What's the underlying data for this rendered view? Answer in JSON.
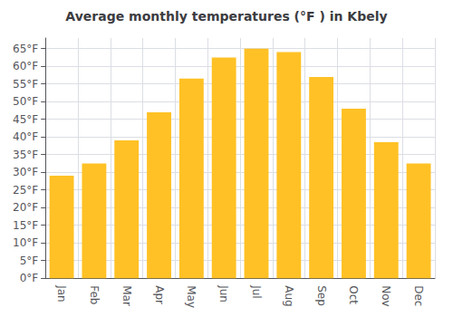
{
  "chart_data": {
    "type": "bar",
    "title": "Average monthly temperatures (°F ) in Kbely",
    "categories": [
      "Jan",
      "Feb",
      "Mar",
      "Apr",
      "May",
      "Jun",
      "Jul",
      "Aug",
      "Sep",
      "Oct",
      "Nov",
      "Dec"
    ],
    "values": [
      29,
      32.5,
      39,
      47,
      56.5,
      62.5,
      65,
      64,
      57,
      48,
      38.5,
      32.5
    ],
    "color": "#FFC125",
    "ylim": [
      0,
      68
    ],
    "yticks": [
      {
        "value": 0,
        "label": "0°F"
      },
      {
        "value": 5,
        "label": "5°F"
      },
      {
        "value": 10,
        "label": "10°F"
      },
      {
        "value": 15,
        "label": "15°F"
      },
      {
        "value": 20,
        "label": "20°F"
      },
      {
        "value": 25,
        "label": "25°F"
      },
      {
        "value": 30,
        "label": "30°F"
      },
      {
        "value": 35,
        "label": "35°F"
      },
      {
        "value": 40,
        "label": "40°F"
      },
      {
        "value": 45,
        "label": "45°F"
      },
      {
        "value": 50,
        "label": "50°F"
      },
      {
        "value": 55,
        "label": "55°F"
      },
      {
        "value": 60,
        "label": "60°F"
      },
      {
        "value": 65,
        "label": "65°F"
      }
    ],
    "grid": true
  }
}
